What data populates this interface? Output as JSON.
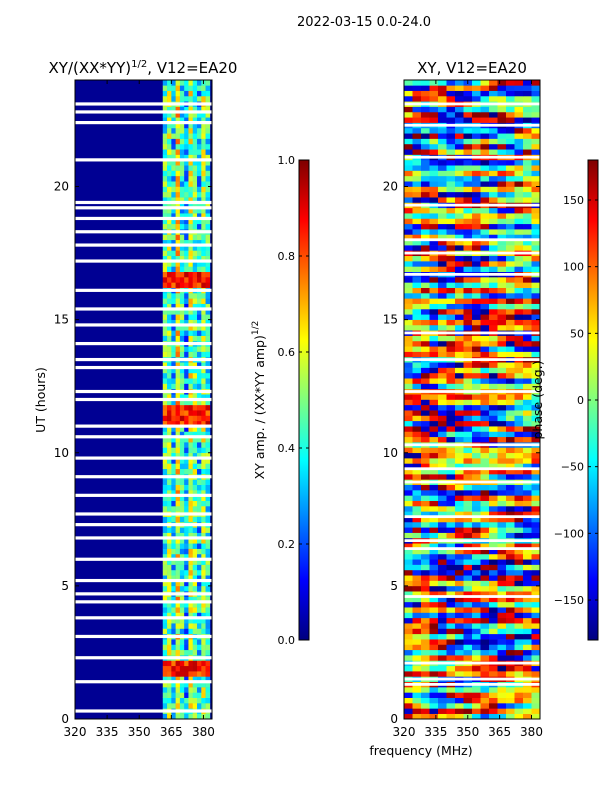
{
  "suptitle": "2022-03-15 0.0-24.0",
  "colors": {
    "jet": [
      "#00007f",
      "#0000ff",
      "#007fff",
      "#00ffff",
      "#7fff7f",
      "#ffff00",
      "#ff7f00",
      "#ff0000",
      "#7f0000"
    ],
    "axis": "#000000",
    "background": "#ffffff"
  },
  "chart_data": [
    {
      "type": "heatmap",
      "title": "XY/(XX*YY)^{1/2}, V12=EA20",
      "title_main": "XY/(XX*YY)",
      "title_exp": "1/2",
      "title_tail": ", V12=EA20",
      "xlabel": "",
      "ylabel": "UT (hours)",
      "xlim": [
        320,
        384
      ],
      "ylim": [
        0,
        24
      ],
      "xticks": [
        "320",
        "335",
        "350",
        "365",
        "380"
      ],
      "xtick_values": [
        320,
        335,
        350,
        365,
        380
      ],
      "yticks": [
        "0",
        "5",
        "10",
        "15",
        "20"
      ],
      "ytick_values": [
        0,
        5,
        10,
        15,
        20
      ],
      "colorbar": {
        "label": "XY amp. / (XX*YY amp)^{1/2}",
        "label_main": "XY amp. / (XX*YY amp)",
        "label_exp": "1/2",
        "range": [
          0,
          1
        ],
        "ticks": [
          "0.0",
          "0.2",
          "0.4",
          "0.6",
          "0.8",
          "1.0"
        ],
        "tick_values": [
          0.0,
          0.2,
          0.4,
          0.6,
          0.8,
          1.0
        ]
      },
      "band_columns_mhz": [
        362,
        364,
        366,
        368,
        370,
        372,
        374,
        376,
        378,
        380,
        382
      ],
      "band_mean_amplitude": [
        0.45,
        0.5,
        0.35,
        0.62,
        0.4,
        0.3,
        0.55,
        0.48,
        0.35,
        0.52,
        0.42
      ],
      "background_amplitude": 0.02,
      "high_amplitude_times_h": [
        1.9,
        11.4,
        16.5
      ],
      "flagged_times_h": [
        0.3,
        1.4,
        2.3,
        3.1,
        3.8,
        4.4,
        4.7,
        5.2,
        6.0,
        6.8,
        7.3,
        7.7,
        8.4,
        9.1,
        9.8,
        10.6,
        11.0,
        12.0,
        12.3,
        13.2,
        13.5,
        14.1,
        14.8,
        15.4,
        16.1,
        17.2,
        17.8,
        18.3,
        18.8,
        19.2,
        19.4,
        21.0,
        22.4,
        22.8,
        23.1
      ]
    },
    {
      "type": "heatmap",
      "title": "XY, V12=EA20",
      "xlabel": "frequency (MHz)",
      "ylabel": "",
      "xlim": [
        320,
        384
      ],
      "ylim": [
        0,
        24
      ],
      "xticks": [
        "320",
        "335",
        "350",
        "365",
        "380"
      ],
      "xtick_values": [
        320,
        335,
        350,
        365,
        380
      ],
      "yticks": [
        "0",
        "5",
        "10",
        "15",
        "20"
      ],
      "ytick_values": [
        0,
        5,
        10,
        15,
        20
      ],
      "colorbar": {
        "label": "phase (deg.)",
        "range": [
          -180,
          180
        ],
        "ticks": [
          "−150",
          "−100",
          "−50",
          "0",
          "50",
          "100",
          "150"
        ],
        "tick_values": [
          -150,
          -100,
          -50,
          0,
          50,
          100,
          150
        ]
      },
      "phase_pattern": "wide-range noisy phase, -180 to 180 deg, horizontal streaks",
      "flagged_times_h": [
        1.3,
        1.5,
        2.1,
        4.6,
        6.4,
        6.7,
        7.6,
        8.9,
        9.4,
        10.3,
        12.3,
        13.5,
        14.5,
        16.7,
        17.5,
        18.0,
        19.3,
        21.1,
        22.3,
        23.1
      ]
    }
  ]
}
